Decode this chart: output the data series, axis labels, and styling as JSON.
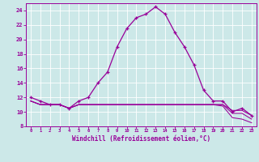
{
  "xlabel": "Windchill (Refroidissement éolien,°C)",
  "background_color": "#cce8e8",
  "line_color": "#990099",
  "grid_color": "#ffffff",
  "xlim": [
    -0.5,
    23.5
  ],
  "ylim": [
    8,
    25
  ],
  "xticks": [
    0,
    1,
    2,
    3,
    4,
    5,
    6,
    7,
    8,
    9,
    10,
    11,
    12,
    13,
    14,
    15,
    16,
    17,
    18,
    19,
    20,
    21,
    22,
    23
  ],
  "yticks": [
    8,
    10,
    12,
    14,
    16,
    18,
    20,
    22,
    24
  ],
  "hours": [
    0,
    1,
    2,
    3,
    4,
    5,
    6,
    7,
    8,
    9,
    10,
    11,
    12,
    13,
    14,
    15,
    16,
    17,
    18,
    19,
    20,
    21,
    22,
    23
  ],
  "temp": [
    12,
    11.5,
    11,
    11,
    10.5,
    11.5,
    12,
    14,
    15.5,
    19,
    21.5,
    23,
    23.5,
    24.5,
    23.5,
    21,
    19,
    16.5,
    13,
    11.5,
    11.5,
    10,
    10.5,
    9.5
  ],
  "wc2": [
    11.5,
    11,
    11,
    11,
    10.5,
    11,
    11,
    11,
    11,
    11,
    11,
    11,
    11,
    11,
    11,
    11,
    11,
    11,
    11,
    11,
    11,
    10.2,
    10.2,
    9.5
  ],
  "wc3": [
    11.5,
    11,
    11,
    11,
    10.5,
    11,
    11,
    11,
    11,
    11,
    11,
    11,
    11,
    11,
    11,
    11,
    11,
    11,
    11,
    11,
    11,
    9.8,
    9.8,
    9.0
  ],
  "wc4": [
    11.5,
    11,
    11,
    11,
    10.5,
    11,
    11,
    11,
    11,
    11,
    11,
    11,
    11,
    11,
    11,
    11,
    11,
    11,
    11,
    11,
    10.8,
    9.2,
    9.0,
    8.5
  ]
}
